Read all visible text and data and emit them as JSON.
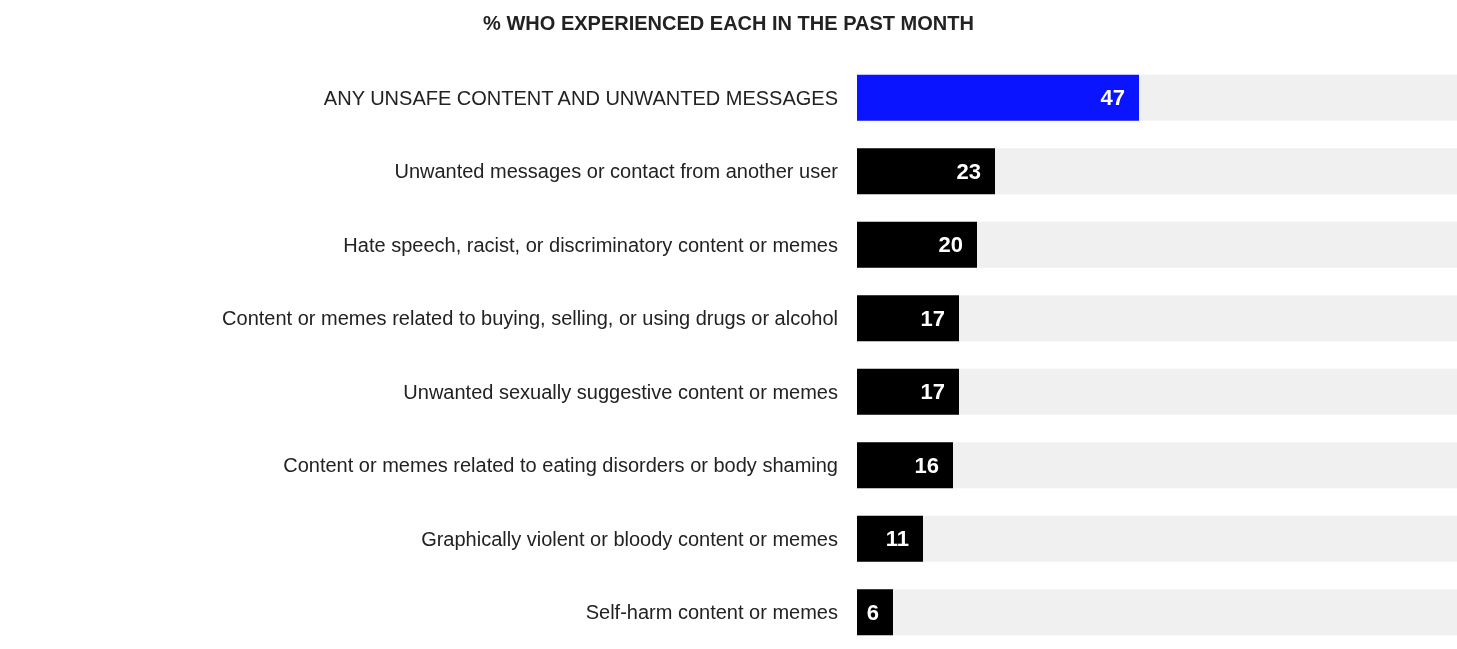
{
  "chart_data": {
    "type": "bar",
    "orientation": "horizontal",
    "title": "% WHO EXPERIENCED EACH IN THE PAST MONTH",
    "categories": [
      "ANY UNSAFE CONTENT AND UNWANTED MESSAGES",
      "Unwanted messages or contact from another user",
      "Hate speech, racist, or discriminatory content or memes",
      "Content or memes related to buying, selling, or using drugs or alcohol",
      "Unwanted sexually suggestive content or memes",
      "Content or memes related to eating disorders or body shaming",
      "Graphically violent or bloody content or memes",
      "Self-harm content or memes"
    ],
    "values": [
      47,
      23,
      20,
      17,
      17,
      16,
      11,
      6
    ],
    "colors": [
      "#0a14ff",
      "#000000",
      "#000000",
      "#000000",
      "#000000",
      "#000000",
      "#000000",
      "#000000"
    ],
    "xlim": [
      0,
      100
    ],
    "tick_labels": "y",
    "data_labels": true
  }
}
